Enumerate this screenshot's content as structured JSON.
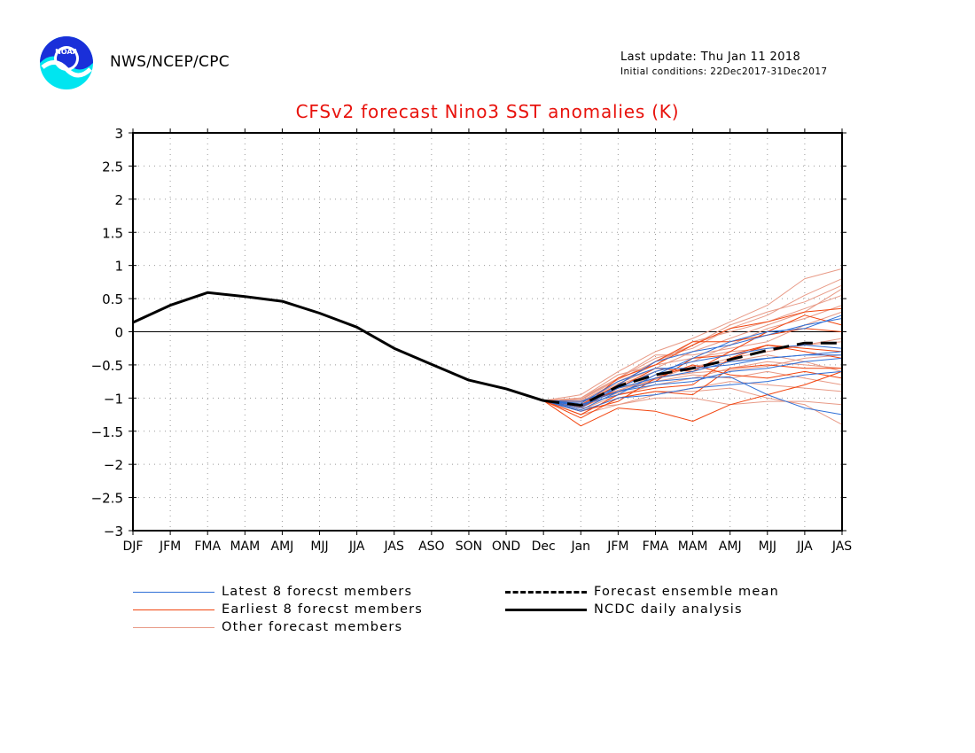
{
  "header": {
    "org": "NWS/NCEP/CPC",
    "last_update": "Last update: Thu Jan 11 2018",
    "initial_conditions": "Initial conditions: 22Dec2017-31Dec2017",
    "logo_text": "NOAA"
  },
  "legend": {
    "latest": "Latest 8 forecst members",
    "earliest": "Earliest 8 forecst members",
    "other": "Other forecast members",
    "mean": "Forecast ensemble mean",
    "analysis": "NCDC daily analysis"
  },
  "colors": {
    "title": "#e8120c",
    "latest": "#2f6fd6",
    "earliest": "#f2440e",
    "other": "#e89a86",
    "mean": "#000000",
    "analysis": "#000000"
  },
  "chart_data": {
    "type": "line",
    "title": "CFSv2 forecast Nino3 SST anomalies (K)",
    "categories": [
      "DJF",
      "JFM",
      "FMA",
      "MAM",
      "AMJ",
      "MJJ",
      "JJA",
      "JAS",
      "ASO",
      "SON",
      "OND",
      "Dec",
      "Jan",
      "JFM",
      "FMA",
      "MAM",
      "AMJ",
      "MJJ",
      "JJA",
      "JAS"
    ],
    "ylim": [
      -3,
      3
    ],
    "yticks": [
      "3",
      "2.5",
      "2",
      "1.5",
      "1",
      "0.5",
      "0",
      "-0.5",
      "-1",
      "-1.5",
      "-2",
      "-2.5",
      "-3"
    ],
    "grid": true,
    "analysis": [
      0.14,
      0.4,
      0.59,
      0.53,
      0.46,
      0.28,
      0.07,
      -0.25,
      -0.49,
      -0.73,
      -0.86,
      -1.04
    ],
    "ensemble_mean": [
      -1.04,
      -1.11,
      -0.82,
      -0.65,
      -0.55,
      -0.42,
      -0.28,
      -0.17,
      -0.17
    ],
    "latest_members": [
      [
        -1.04,
        -1.1,
        -0.9,
        -0.75,
        -0.7,
        -0.68,
        -0.95,
        -1.15,
        -1.25
      ],
      [
        -1.04,
        -1.15,
        -0.8,
        -0.45,
        -0.3,
        -0.2,
        -0.05,
        0.1,
        0.2
      ],
      [
        -1.04,
        -1.05,
        -0.85,
        -0.6,
        -0.45,
        -0.35,
        -0.25,
        -0.2,
        -0.25
      ],
      [
        -1.04,
        -1.2,
        -1.0,
        -0.95,
        -0.85,
        -0.8,
        -0.75,
        -0.65,
        -0.6
      ],
      [
        -1.04,
        -1.1,
        -0.95,
        -0.65,
        -0.4,
        -0.15,
        0.0,
        0.05,
        0.25
      ],
      [
        -1.04,
        -1.08,
        -0.75,
        -0.55,
        -0.55,
        -0.5,
        -0.4,
        -0.35,
        -0.3
      ],
      [
        -1.04,
        -1.12,
        -0.85,
        -0.7,
        -0.6,
        -0.45,
        -0.4,
        -0.35,
        -0.35
      ],
      [
        -1.04,
        -1.18,
        -0.9,
        -0.8,
        -0.75,
        -0.6,
        -0.55,
        -0.45,
        -0.4
      ]
    ],
    "earliest_members": [
      [
        -1.04,
        -1.42,
        -1.15,
        -1.2,
        -1.35,
        -1.1,
        -0.95,
        -0.8,
        -0.6
      ],
      [
        -1.04,
        -1.15,
        -0.7,
        -0.5,
        -0.2,
        0.05,
        0.15,
        0.3,
        0.35
      ],
      [
        -1.04,
        -1.25,
        -0.95,
        -0.85,
        -0.8,
        -0.4,
        -0.2,
        -0.25,
        -0.3
      ],
      [
        -1.04,
        -1.1,
        -0.8,
        -0.45,
        -0.15,
        -0.15,
        -0.05,
        0.05,
        0.0
      ],
      [
        -1.04,
        -1.3,
        -1.0,
        -0.9,
        -0.95,
        -0.55,
        -0.5,
        -0.55,
        -0.55
      ],
      [
        -1.04,
        -1.2,
        -1.05,
        -0.7,
        -0.5,
        -0.65,
        -0.7,
        -0.6,
        -0.7
      ],
      [
        -1.04,
        -1.15,
        -0.85,
        -0.55,
        -0.6,
        -0.3,
        0.0,
        0.25,
        0.1
      ],
      [
        -1.04,
        -1.05,
        -0.9,
        -0.75,
        -0.4,
        -0.35,
        -0.2,
        -0.3,
        -0.4
      ]
    ],
    "other_members": [
      [
        -1.04,
        -0.95,
        -0.6,
        -0.3,
        -0.1,
        0.15,
        0.4,
        0.8,
        0.95
      ],
      [
        -1.04,
        -1.0,
        -0.7,
        -0.4,
        -0.25,
        0.05,
        0.25,
        0.55,
        0.8
      ],
      [
        -1.04,
        -1.05,
        -0.75,
        -0.5,
        -0.15,
        0.0,
        0.15,
        0.35,
        0.55
      ],
      [
        -1.04,
        -1.1,
        -0.9,
        -0.65,
        -0.55,
        -0.4,
        -0.3,
        -0.2,
        -0.1
      ],
      [
        -1.04,
        -1.2,
        -1.0,
        -0.9,
        -0.9,
        -0.85,
        -1.0,
        -1.1,
        -1.4
      ],
      [
        -1.04,
        -1.15,
        -1.1,
        -1.0,
        -1.0,
        -1.1,
        -1.05,
        -1.05,
        -1.1
      ],
      [
        -1.04,
        -1.0,
        -0.65,
        -0.5,
        -0.4,
        -0.3,
        -0.25,
        -0.2,
        -0.15
      ],
      [
        -1.04,
        -1.12,
        -0.85,
        -0.75,
        -0.65,
        -0.7,
        -0.6,
        -0.7,
        -0.8
      ],
      [
        -1.04,
        -1.08,
        -0.8,
        -0.6,
        -0.45,
        -0.2,
        0.05,
        0.2,
        0.4
      ],
      [
        -1.04,
        -1.18,
        -0.95,
        -0.8,
        -0.7,
        -0.55,
        -0.45,
        -0.5,
        -0.55
      ],
      [
        -1.04,
        -1.02,
        -0.7,
        -0.35,
        -0.35,
        -0.25,
        -0.15,
        0.1,
        0.3
      ],
      [
        -1.04,
        -1.25,
        -1.1,
        -0.95,
        -0.85,
        -0.75,
        -0.8,
        -0.85,
        -0.9
      ],
      [
        -1.04,
        -1.06,
        -0.78,
        -0.55,
        -0.3,
        -0.1,
        0.1,
        0.3,
        0.65
      ],
      [
        -1.04,
        -1.14,
        -0.92,
        -0.7,
        -0.62,
        -0.58,
        -0.52,
        -0.4,
        -0.35
      ],
      [
        -1.04,
        -1.1,
        -0.88,
        -0.72,
        -0.52,
        -0.45,
        -0.35,
        -0.45,
        -0.6
      ],
      [
        -1.04,
        -1.03,
        -0.72,
        -0.45,
        -0.2,
        0.1,
        0.3,
        0.45,
        0.7
      ]
    ]
  }
}
